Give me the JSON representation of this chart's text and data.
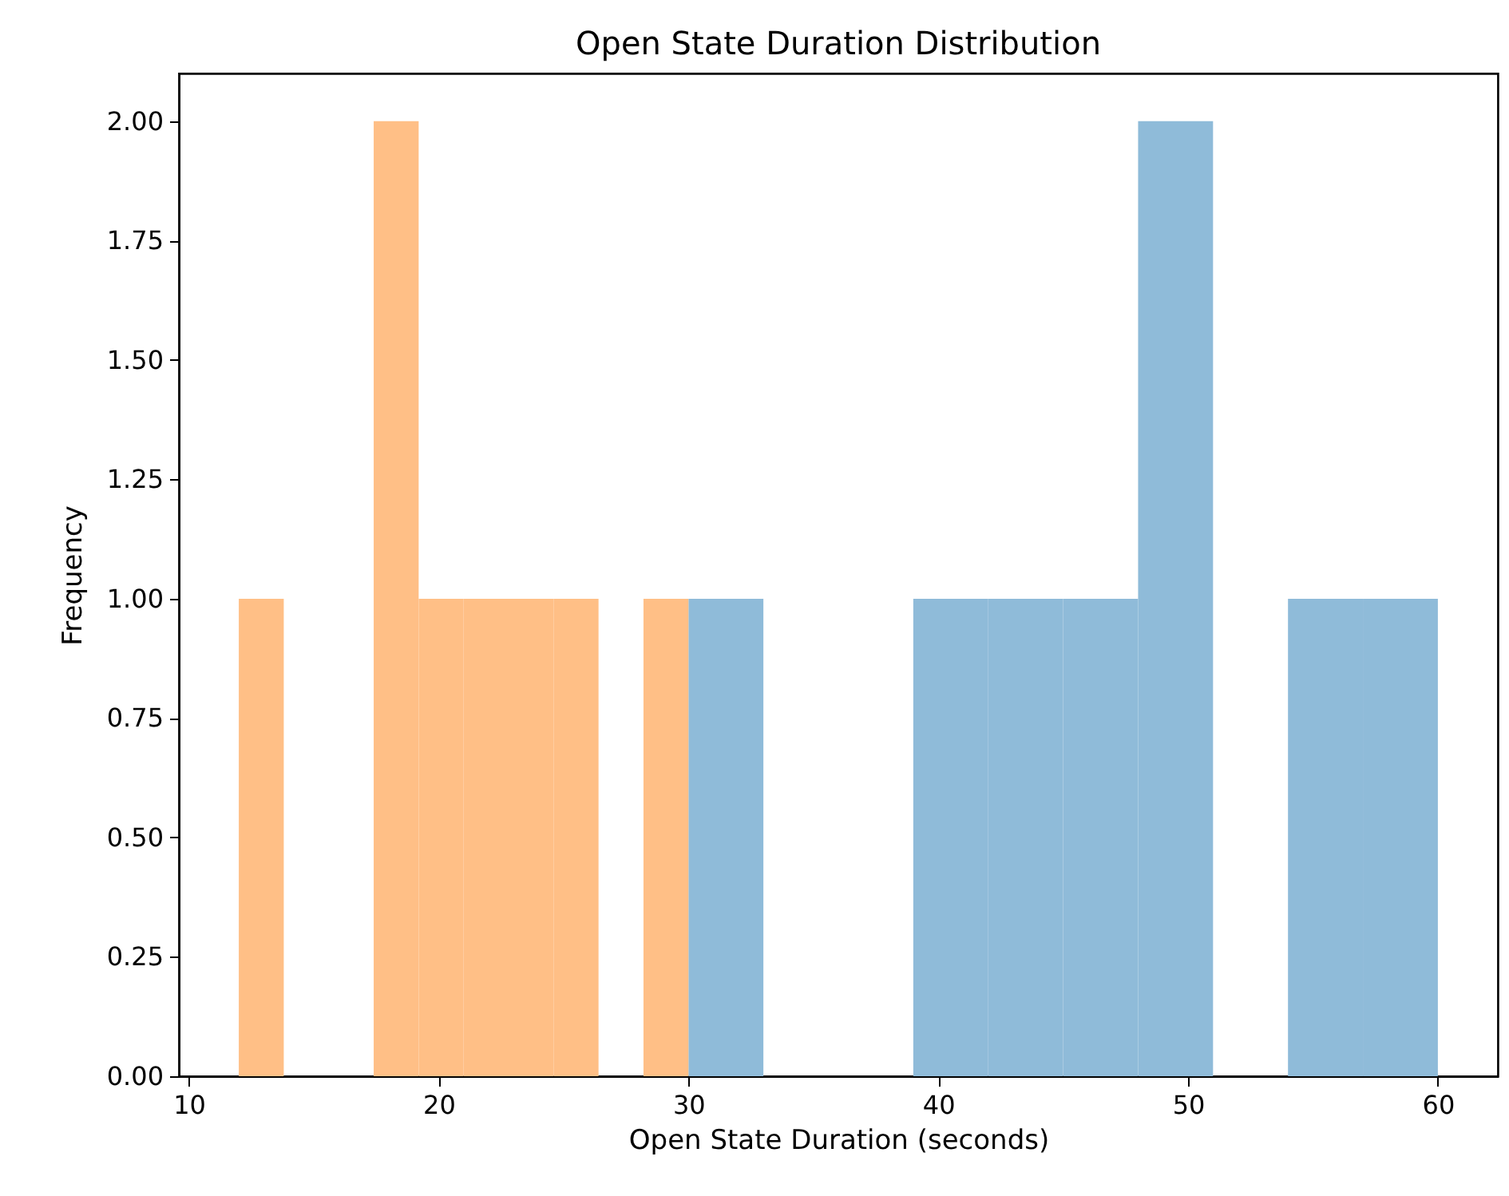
{
  "chart_data": {
    "type": "histogram",
    "title": "Open State Duration Distribution",
    "xlabel": "Open State Duration (seconds)",
    "ylabel": "Frequency",
    "bins": [
      12,
      13.8,
      17.4,
      19.2,
      21,
      22.8,
      24.6,
      26.4,
      28.2,
      30,
      33,
      39,
      42,
      45,
      48,
      51,
      54,
      57,
      60
    ],
    "series": [
      {
        "color": "#8fbbd9",
        "values": [
          null,
          null,
          null,
          null,
          null,
          null,
          null,
          null,
          null,
          1,
          0,
          1,
          1,
          1,
          2,
          0,
          1,
          1
        ]
      },
      {
        "color": "#ffbf86",
        "values": [
          1,
          0,
          2,
          1,
          1,
          1,
          1,
          0,
          1,
          null,
          null,
          null,
          null,
          null,
          null,
          null,
          null,
          null
        ]
      }
    ],
    "xlim": [
      9.6,
      62.4
    ],
    "xticks": [
      10,
      20,
      30,
      40,
      50,
      60
    ],
    "ylim": [
      0,
      2.1
    ],
    "yticks": [
      {
        "value": 0,
        "label": "0.00"
      },
      {
        "value": 0.25,
        "label": "0.25"
      },
      {
        "value": 0.5,
        "label": "0.50"
      },
      {
        "value": 0.75,
        "label": "0.75"
      },
      {
        "value": 1,
        "label": "1.00"
      },
      {
        "value": 1.25,
        "label": "1.25"
      },
      {
        "value": 1.5,
        "label": "1.50"
      },
      {
        "value": 1.75,
        "label": "1.75"
      },
      {
        "value": 2,
        "label": "2.00"
      }
    ],
    "grid": false,
    "legend": false
  }
}
